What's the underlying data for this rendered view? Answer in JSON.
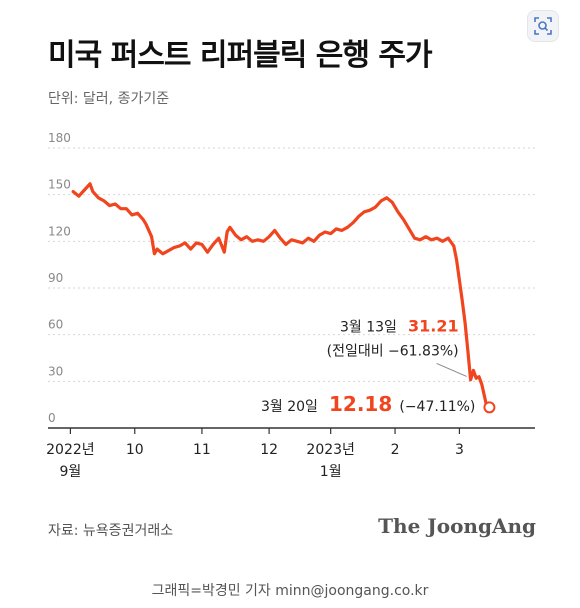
{
  "title": "미국 퍼스트 리퍼블릭 은행 주가",
  "unit_label": "단위: 달러, 종가기준",
  "source": "자료: 뉴욕증권거래소",
  "brand": "The JoongAng",
  "credit": "그래픽=박경민 기자 minn@joongang.co.kr",
  "zoom_icon": "zoom-in-icon",
  "chart_data": {
    "type": "line",
    "title": "미국 퍼스트 리퍼블릭 은행 주가",
    "ylabel": "단위: 달러, 종가기준",
    "ylim": [
      0,
      180
    ],
    "yticks": [
      0,
      30,
      60,
      90,
      120,
      150,
      180
    ],
    "grid": true,
    "x_ticks": [
      {
        "label": "2022년",
        "sub": "9월",
        "x": 0
      },
      {
        "label": "10",
        "sub": "",
        "x": 23
      },
      {
        "label": "11",
        "sub": "",
        "x": 47
      },
      {
        "label": "12",
        "sub": "",
        "x": 71
      },
      {
        "label": "2023년",
        "sub": "1월",
        "x": 93
      },
      {
        "label": "2",
        "sub": "",
        "x": 116
      },
      {
        "label": "3",
        "sub": "",
        "x": 139
      }
    ],
    "xlim": [
      -8,
      166
    ],
    "color": "#f0451e",
    "series": [
      {
        "values": [
          [
            1,
            152
          ],
          [
            3,
            149
          ],
          [
            5,
            153
          ],
          [
            7,
            157
          ],
          [
            8,
            152
          ],
          [
            10,
            148
          ],
          [
            12,
            146
          ],
          [
            14,
            143
          ],
          [
            16,
            144
          ],
          [
            18,
            141
          ],
          [
            20,
            141
          ],
          [
            22,
            137
          ],
          [
            24,
            138
          ],
          [
            26,
            134
          ],
          [
            27,
            131
          ],
          [
            29,
            123
          ],
          [
            30,
            112
          ],
          [
            31,
            115
          ],
          [
            33,
            112
          ],
          [
            35,
            114
          ],
          [
            37,
            116
          ],
          [
            39,
            117
          ],
          [
            41,
            119
          ],
          [
            43,
            115
          ],
          [
            45,
            119
          ],
          [
            47,
            118
          ],
          [
            49,
            113
          ],
          [
            51,
            118
          ],
          [
            53,
            122
          ],
          [
            55,
            113
          ],
          [
            56,
            126
          ],
          [
            57,
            129
          ],
          [
            59,
            124
          ],
          [
            61,
            121
          ],
          [
            63,
            123
          ],
          [
            65,
            120
          ],
          [
            67,
            121
          ],
          [
            69,
            120
          ],
          [
            71,
            123
          ],
          [
            73,
            127
          ],
          [
            75,
            122
          ],
          [
            77,
            118
          ],
          [
            79,
            121
          ],
          [
            81,
            120
          ],
          [
            83,
            119
          ],
          [
            85,
            122
          ],
          [
            87,
            120
          ],
          [
            89,
            124
          ],
          [
            91,
            126
          ],
          [
            93,
            125
          ],
          [
            95,
            128
          ],
          [
            97,
            127
          ],
          [
            99,
            129
          ],
          [
            101,
            132
          ],
          [
            103,
            136
          ],
          [
            105,
            139
          ],
          [
            107,
            140
          ],
          [
            109,
            142
          ],
          [
            111,
            146
          ],
          [
            113,
            148
          ],
          [
            115,
            145
          ],
          [
            117,
            139
          ],
          [
            119,
            134
          ],
          [
            121,
            128
          ],
          [
            123,
            122
          ],
          [
            125,
            121
          ],
          [
            127,
            123
          ],
          [
            129,
            121
          ],
          [
            131,
            122
          ],
          [
            133,
            120
          ],
          [
            135,
            122
          ],
          [
            137,
            117
          ],
          [
            138,
            108
          ],
          [
            139,
            95
          ],
          [
            140,
            82
          ],
          [
            141,
            68
          ],
          [
            142,
            50
          ],
          [
            143,
            31
          ],
          [
            144,
            37
          ],
          [
            145,
            32
          ],
          [
            146,
            33
          ],
          [
            147,
            28
          ],
          [
            148,
            20
          ],
          [
            149,
            12
          ]
        ]
      }
    ],
    "annotations": [
      {
        "label": "3월 13일",
        "value": "31.21",
        "note": "(전일대비 −61.83%)",
        "x": 143,
        "y": 31.21
      },
      {
        "label": "3월 20일",
        "value": "12.18",
        "note": "(−47.11%)",
        "x": 149,
        "y": 12.18
      }
    ]
  }
}
